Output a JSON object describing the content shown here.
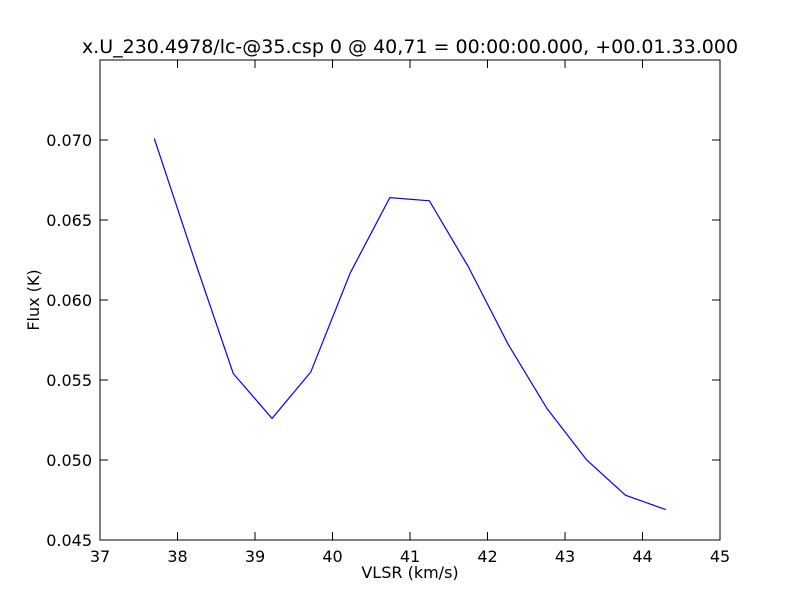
{
  "chart_data": {
    "type": "line",
    "title": "x.U_230.4978/lc-@35.csp 0 @ 40,71 = 00:00:00.000, +00.01.33.000",
    "xlabel": "VLSR (km/s)",
    "ylabel": "Flux (K)",
    "xlim": [
      37,
      45
    ],
    "ylim": [
      0.045,
      0.075
    ],
    "x_ticks": [
      37,
      38,
      39,
      40,
      41,
      42,
      43,
      44,
      45
    ],
    "x_tick_labels": [
      "37",
      "38",
      "39",
      "40",
      "41",
      "42",
      "43",
      "44",
      "45"
    ],
    "y_ticks": [
      0.045,
      0.05,
      0.055,
      0.06,
      0.065,
      0.07
    ],
    "y_tick_labels": [
      "0.045",
      "0.050",
      "0.055",
      "0.060",
      "0.065",
      "0.070"
    ],
    "grid": false,
    "series": [
      {
        "color": "#0000ff",
        "x": [
          37.7,
          38.22,
          38.72,
          39.22,
          39.72,
          40.23,
          40.74,
          41.25,
          41.75,
          42.27,
          42.77,
          43.28,
          43.78,
          44.3
        ],
        "y": [
          0.0701,
          0.0625,
          0.0554,
          0.0526,
          0.0555,
          0.0617,
          0.0664,
          0.0662,
          0.0621,
          0.0572,
          0.0532,
          0.05,
          0.0478,
          0.0469
        ]
      }
    ]
  }
}
